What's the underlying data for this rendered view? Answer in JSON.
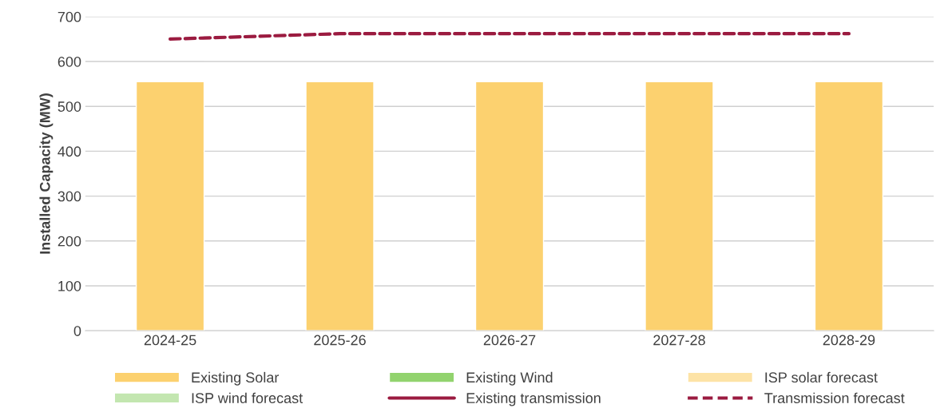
{
  "chart_data": {
    "type": "bar",
    "ylabel": "Installed Capacity (MW)",
    "categories": [
      "2024-25",
      "2025-26",
      "2026-27",
      "2027-28",
      "2028-29"
    ],
    "series": [
      {
        "name": "Existing Solar",
        "color": "#fcd16f",
        "values": [
          555,
          555,
          555,
          555,
          555
        ]
      },
      {
        "name": "Existing Wind",
        "color": "#92d36e",
        "values": [
          null,
          null,
          null,
          null,
          null
        ]
      },
      {
        "name": "ISP solar forecast",
        "color": "#fde3a6",
        "values": [
          null,
          null,
          null,
          null,
          null
        ]
      },
      {
        "name": "ISP wind forecast",
        "color": "#c3e6b0",
        "values": [
          null,
          null,
          null,
          null,
          null
        ]
      },
      {
        "name": "Existing transmission",
        "type": "line",
        "color": "#9b1b40",
        "line_style": "solid",
        "values": [
          null,
          null,
          null,
          null,
          null
        ]
      },
      {
        "name": "Transmission forecast",
        "type": "line",
        "color": "#9b1b40",
        "line_style": "dashed",
        "values": [
          650,
          662,
          662,
          662,
          662
        ]
      }
    ],
    "ylim": [
      0,
      700
    ],
    "yticks": [
      0,
      100,
      200,
      300,
      400,
      500,
      600,
      700
    ],
    "grid": "y",
    "legend": "bottom"
  }
}
